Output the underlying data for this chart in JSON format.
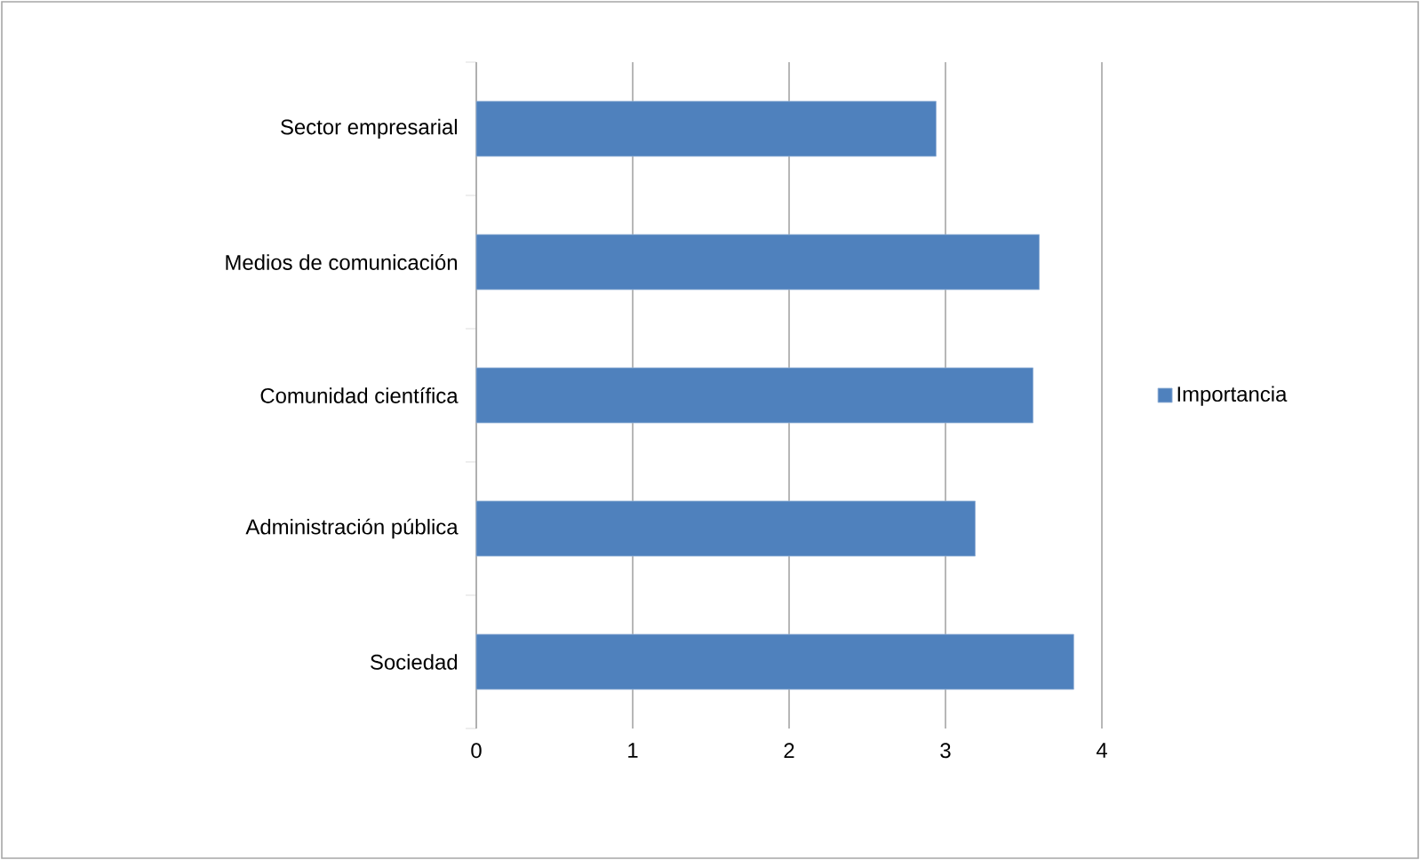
{
  "chart_data": {
    "type": "bar",
    "orientation": "horizontal",
    "categories": [
      "Sector empresarial",
      "Medios de comunicación",
      "Comunidad científica",
      "Administración pública",
      "Sociedad"
    ],
    "series": [
      {
        "name": "Importancia",
        "color": "#4f81bd",
        "values": [
          2.94,
          3.6,
          3.56,
          3.19,
          3.82
        ]
      }
    ],
    "xlim": [
      0,
      4
    ],
    "xticks": [
      0,
      1,
      2,
      3,
      4
    ],
    "grid": "x",
    "legend": "right"
  }
}
